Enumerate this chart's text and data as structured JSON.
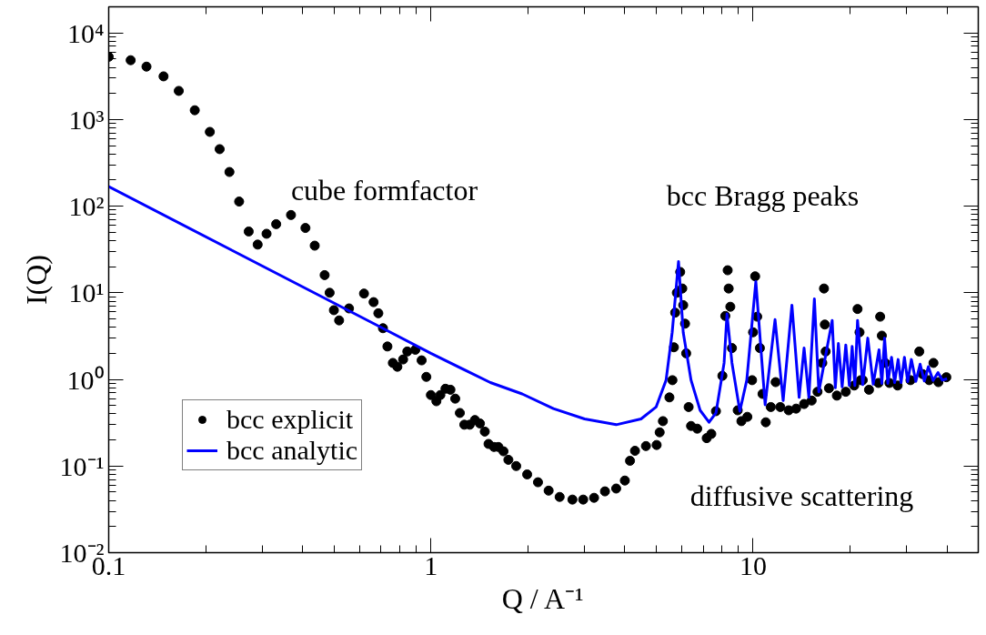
{
  "chart_data": {
    "type": "scatter",
    "xlabel": "Q / A⁻¹",
    "ylabel": "I(Q)",
    "log": "xy",
    "grid": false,
    "legend": "bottom left",
    "xlim": [
      0.1,
      50
    ],
    "ylim": [
      0.01,
      20000
    ],
    "xticks": [
      0.1,
      1,
      10
    ],
    "yticks": [
      {
        "value": 0.01,
        "label": "10⁻²"
      },
      {
        "value": 0.1,
        "label": "10⁻¹"
      },
      {
        "value": 1,
        "label": "10⁰"
      },
      {
        "value": 10,
        "label": "10¹"
      },
      {
        "value": 100,
        "label": "10²"
      },
      {
        "value": 1000,
        "label": "10³"
      },
      {
        "value": 10000,
        "label": "10⁴"
      }
    ],
    "annotations": [
      "cube formfactor",
      "bcc Bragg peaks",
      "diffusive scattering"
    ],
    "series": [
      {
        "name": "bcc explicit",
        "marker": "circle",
        "color": "#000000",
        "x": [
          0.1,
          0.117,
          0.131,
          0.148,
          0.165,
          0.185,
          0.206,
          0.221,
          0.237,
          0.254,
          0.272,
          0.29,
          0.309,
          0.331,
          0.368,
          0.408,
          0.436,
          0.468,
          0.485,
          0.5,
          0.519,
          0.557,
          0.62,
          0.664,
          0.687,
          0.71,
          0.733,
          0.762,
          0.787,
          0.82,
          0.845,
          0.895,
          0.936,
          0.968,
          1.0,
          1.04,
          1.07,
          1.11,
          1.15,
          1.19,
          1.23,
          1.27,
          1.32,
          1.37,
          1.42,
          1.47,
          1.51,
          1.57,
          1.62,
          1.68,
          1.74,
          1.84,
          1.99,
          2.15,
          2.32,
          2.51,
          2.75,
          2.97,
          3.21,
          3.47,
          3.76,
          4.0,
          4.15,
          4.3,
          4.65,
          5.02,
          5.13,
          5.25,
          5.5,
          5.62,
          5.68,
          5.73,
          5.8,
          5.94,
          6.03,
          6.07,
          6.15,
          6.2,
          6.31,
          6.42,
          6.71,
          7.18,
          7.42,
          7.67,
          8.03,
          8.2,
          8.34,
          8.4,
          8.5,
          8.6,
          8.96,
          9.2,
          9.6,
          9.93,
          10.0,
          10.15,
          10.3,
          10.5,
          10.7,
          10.95,
          11.35,
          11.75,
          12.15,
          12.9,
          13.6,
          14.4,
          15.2,
          15.85,
          16.4,
          16.6,
          16.7,
          16.8,
          17.2,
          18.2,
          19.4,
          20.6,
          21.1,
          21.4,
          21.6,
          21.9,
          22.9,
          24.5,
          24.8,
          25.1,
          25.7,
          26.5,
          28.1,
          30.8,
          32.8,
          33.6,
          35.2,
          36.3,
          37.6,
          39.8
        ],
        "values": [
          5300,
          4840,
          4080,
          3150,
          2140,
          1280,
          720,
          455,
          248,
          113,
          51,
          36,
          48,
          62,
          79,
          56,
          35,
          16,
          10,
          6.3,
          4.8,
          6.6,
          9.8,
          7.8,
          5.8,
          3.9,
          2.4,
          1.55,
          1.4,
          1.7,
          2.1,
          2.2,
          1.66,
          1.07,
          0.66,
          0.56,
          0.66,
          0.78,
          0.76,
          0.6,
          0.41,
          0.3,
          0.3,
          0.34,
          0.31,
          0.25,
          0.18,
          0.166,
          0.166,
          0.148,
          0.118,
          0.1,
          0.08,
          0.065,
          0.052,
          0.044,
          0.041,
          0.041,
          0.043,
          0.051,
          0.055,
          0.068,
          0.115,
          0.15,
          0.17,
          0.175,
          0.245,
          0.33,
          0.62,
          0.98,
          2.35,
          5.9,
          10,
          17.4,
          11.2,
          7.2,
          4.4,
          2.0,
          0.48,
          0.29,
          0.27,
          0.21,
          0.235,
          0.43,
          1.1,
          5.4,
          18.2,
          11.2,
          6.9,
          2.3,
          0.44,
          0.33,
          0.37,
          0.98,
          3.5,
          15.5,
          5.3,
          2.3,
          0.68,
          0.32,
          0.48,
          0.93,
          0.48,
          0.44,
          0.46,
          0.52,
          0.57,
          0.72,
          1.55,
          11.2,
          4.3,
          2.1,
          0.79,
          0.65,
          0.72,
          0.85,
          6.5,
          3.5,
          0.98,
          0.98,
          0.76,
          0.91,
          5.3,
          3.2,
          1.55,
          0.91,
          0.85,
          0.98,
          2.1,
          1.15,
          0.98,
          1.55,
          0.93,
          1.06
        ]
      },
      {
        "name": "bcc analytic",
        "type": "line",
        "color": "#0000ff",
        "x": [
          0.1,
          0.678,
          1.0,
          1.53,
          1.92,
          2.4,
          3.0,
          3.76,
          4.49,
          5.0,
          5.37,
          5.61,
          5.87,
          6.07,
          6.42,
          6.85,
          7.3,
          7.67,
          8.13,
          8.3,
          8.6,
          9.1,
          9.56,
          10.2,
          10.9,
          11.7,
          12.4,
          13.2,
          13.9,
          14.4,
          14.9,
          15.5,
          16.0,
          17.6,
          18.0,
          18.4,
          18.9,
          19.4,
          19.9,
          20.3,
          20.7,
          21.1,
          21.9,
          22.7,
          23.6,
          24.6,
          25.1,
          25.6,
          26.2,
          26.9,
          27.5,
          28.2,
          28.8,
          29.5,
          30.2,
          31.0,
          32.0,
          33.0,
          34.0,
          35.0,
          36.2,
          37.5,
          38.7,
          40
        ],
        "values": [
          168,
          4.25,
          2.0,
          0.92,
          0.68,
          0.46,
          0.35,
          0.3,
          0.35,
          0.48,
          0.98,
          3.5,
          23,
          3.5,
          0.98,
          0.44,
          0.32,
          0.41,
          1.55,
          5.7,
          1.55,
          0.43,
          0.98,
          13.5,
          0.51,
          4.9,
          0.57,
          7.2,
          0.62,
          2.3,
          0.62,
          8.5,
          0.72,
          4.8,
          0.8,
          2.6,
          0.82,
          2.5,
          0.85,
          2.4,
          0.85,
          4.8,
          0.87,
          3.0,
          0.88,
          2.2,
          0.9,
          3.0,
          0.9,
          1.8,
          0.92,
          1.7,
          0.92,
          1.8,
          0.94,
          1.7,
          0.95,
          1.5,
          0.96,
          1.4,
          0.97,
          1.2,
          0.98,
          1.02
        ]
      }
    ]
  }
}
